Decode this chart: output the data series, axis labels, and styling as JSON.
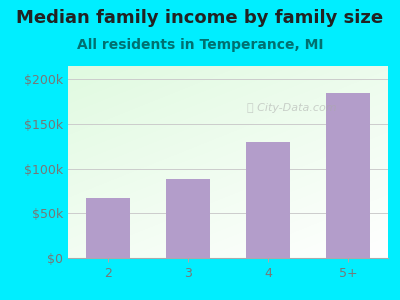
{
  "categories": [
    "2",
    "3",
    "4",
    "5+"
  ],
  "values": [
    67000,
    88000,
    130000,
    185000
  ],
  "bar_color": "#b39dca",
  "title": "Median family income by family size",
  "subtitle": "All residents in Temperance, MI",
  "title_fontsize": 13,
  "subtitle_fontsize": 10,
  "ylabel_ticks": [
    0,
    50000,
    100000,
    150000,
    200000
  ],
  "ylabel_labels": [
    "$0",
    "$50k",
    "$100k",
    "$150k",
    "$200k"
  ],
  "ylim": [
    0,
    215000
  ],
  "bg_color": "#00eeff",
  "title_color": "#222222",
  "subtitle_color": "#007070",
  "tick_color": "#777777",
  "watermark": "City-Data.com",
  "grid_color": "#cccccc"
}
